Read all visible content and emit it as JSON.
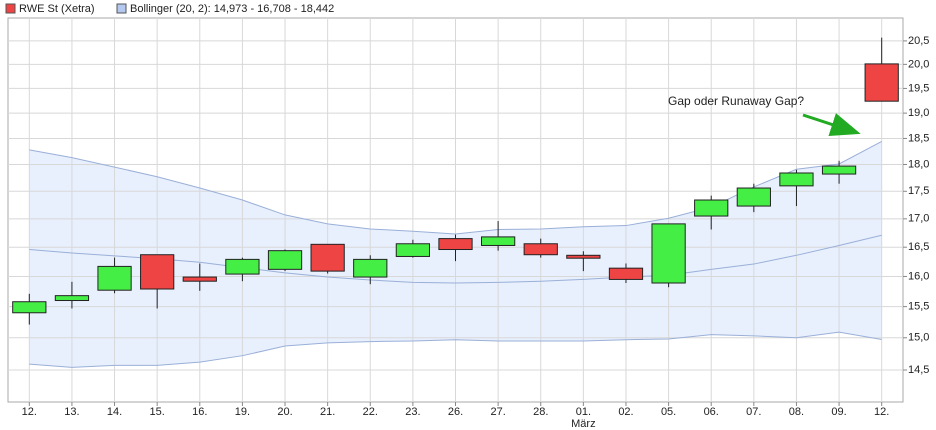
{
  "chart_data": {
    "type": "candlestick",
    "log_scale": true,
    "grid": true,
    "categories": [
      "12.",
      "13.",
      "14.",
      "15.",
      "16.",
      "19.",
      "20.",
      "21.",
      "22.",
      "23.",
      "26.",
      "27.",
      "28.",
      "01.",
      "02.",
      "05.",
      "06.",
      "07.",
      "08.",
      "09.",
      "12."
    ],
    "x_sublabels": [
      null,
      null,
      null,
      null,
      null,
      null,
      null,
      null,
      null,
      null,
      null,
      null,
      null,
      "März",
      null,
      null,
      null,
      null,
      null,
      null,
      null
    ],
    "ylim": [
      14.02,
      21.0
    ],
    "yticks": [
      {
        "value": 14.5,
        "label": "14,5"
      },
      {
        "value": 15.0,
        "label": "15,0"
      },
      {
        "value": 15.5,
        "label": "15,5"
      },
      {
        "value": 16.0,
        "label": "16,0"
      },
      {
        "value": 16.5,
        "label": "16,5"
      },
      {
        "value": 17.0,
        "label": "17,0"
      },
      {
        "value": 17.5,
        "label": "17,5"
      },
      {
        "value": 18.0,
        "label": "18,0"
      },
      {
        "value": 18.5,
        "label": "18,5"
      },
      {
        "value": 19.0,
        "label": "19,0"
      },
      {
        "value": 19.5,
        "label": "19,5"
      },
      {
        "value": 20.0,
        "label": "20,0"
      },
      {
        "value": 20.5,
        "label": "20,5"
      }
    ],
    "candles": {
      "name": "RWE St (Xetra)",
      "color": "#ee4444",
      "up_color": "#44ee44",
      "down_color": "#ee4444",
      "open": [
        15.4,
        15.6,
        15.77,
        16.37,
        15.99,
        16.04,
        16.12,
        16.55,
        15.99,
        16.34,
        16.65,
        16.53,
        16.56,
        16.36,
        16.14,
        15.89,
        17.05,
        17.23,
        17.6,
        17.82,
        20.01
      ],
      "high": [
        15.71,
        15.91,
        16.32,
        16.37,
        16.22,
        16.32,
        16.46,
        16.55,
        16.36,
        16.63,
        16.72,
        16.96,
        16.65,
        16.43,
        16.22,
        16.91,
        17.42,
        17.64,
        17.9,
        18.07,
        20.57
      ],
      "low": [
        15.21,
        15.47,
        15.72,
        15.47,
        15.76,
        15.92,
        16.09,
        16.05,
        15.87,
        16.32,
        16.26,
        16.44,
        16.32,
        16.09,
        15.89,
        15.82,
        16.81,
        17.12,
        17.23,
        17.64,
        19.24
      ],
      "close": [
        15.58,
        15.68,
        16.17,
        15.79,
        15.92,
        16.29,
        16.44,
        16.09,
        16.29,
        16.56,
        16.46,
        16.68,
        16.37,
        16.31,
        15.95,
        16.91,
        17.34,
        17.56,
        17.84,
        17.97,
        19.24
      ]
    },
    "bollinger": {
      "name": "Bollinger (20, 2): 14,973 - 16,708 - 18,442",
      "color": "#9ab0d8",
      "fill": "#e8effd",
      "upper": [
        18.28,
        18.13,
        17.95,
        17.77,
        17.56,
        17.34,
        17.07,
        16.91,
        16.82,
        16.78,
        16.73,
        16.81,
        16.82,
        16.86,
        16.88,
        17.01,
        17.21,
        17.58,
        17.91,
        18.01,
        18.442
      ],
      "middle": [
        16.46,
        16.4,
        16.35,
        16.3,
        16.24,
        16.15,
        16.06,
        15.99,
        15.94,
        15.9,
        15.89,
        15.9,
        15.92,
        15.95,
        15.99,
        16.02,
        16.12,
        16.21,
        16.36,
        16.53,
        16.708
      ],
      "lower": [
        14.59,
        14.54,
        14.57,
        14.57,
        14.62,
        14.72,
        14.87,
        14.92,
        14.94,
        14.95,
        14.97,
        14.95,
        14.95,
        14.95,
        14.97,
        14.98,
        15.05,
        15.03,
        15.0,
        15.09,
        14.973
      ]
    },
    "annotation": "Gap oder Runaway Gap?"
  }
}
